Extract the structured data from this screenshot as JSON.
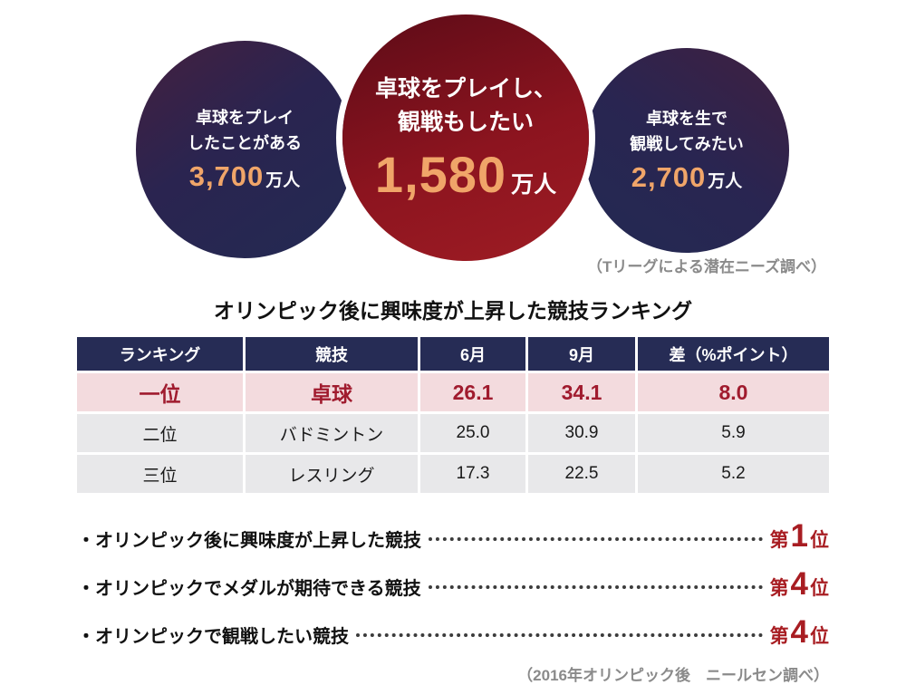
{
  "circles": [
    {
      "line1": "卓球をプレイ",
      "line2": "したことがある",
      "number": "3,700",
      "unit": "万人"
    },
    {
      "line1": "卓球をプレイし、",
      "line2": "観戦もしたい",
      "number": "1,580",
      "unit": "万人"
    },
    {
      "line1": "卓球を生で",
      "line2": "観戦してみたい",
      "number": "2,700",
      "unit": "万人"
    }
  ],
  "circles_caption": "（Tリーグによる潜在ニーズ調べ）",
  "table": {
    "title": "オリンピック後に興味度が上昇した競技ランキング",
    "headers": [
      "ランキング",
      "競技",
      "6月",
      "9月",
      "差（%ポイント）"
    ],
    "rows": [
      [
        "一位",
        "卓球",
        "26.1",
        "34.1",
        "8.0"
      ],
      [
        "二位",
        "バドミントン",
        "25.0",
        "30.9",
        "5.9"
      ],
      [
        "三位",
        "レスリング",
        "17.3",
        "22.5",
        "5.2"
      ]
    ]
  },
  "bullets": [
    {
      "label": "・オリンピック後に興味度が上昇した競技",
      "prefix": "第",
      "number": "1",
      "suffix": "位"
    },
    {
      "label": "・オリンピックでメダルが期待できる競技",
      "prefix": "第",
      "number": "4",
      "suffix": "位"
    },
    {
      "label": "・オリンピックで観戦したい競技",
      "prefix": "第",
      "number": "4",
      "suffix": "位"
    }
  ],
  "bottom_caption": "（2016年オリンピック後　ニールセン調べ）",
  "colors": {
    "navy": "#232a52",
    "dark_red": "#8c141f",
    "accent_orange": "#f0a569",
    "highlight_row_bg": "#f3dbde",
    "highlight_text": "#a01b2e",
    "gray_row_bg": "#e8e8ea",
    "header_bg": "#262c55",
    "caption_gray": "#8a8a8a"
  },
  "chart_data": {
    "type": "table",
    "title": "オリンピック後に興味度が上昇した競技ランキング",
    "columns": [
      "ランキング",
      "競技",
      "6月",
      "9月",
      "差（%ポイント）"
    ],
    "rows": [
      [
        "一位",
        "卓球",
        26.1,
        34.1,
        8.0
      ],
      [
        "二位",
        "バドミントン",
        25.0,
        30.9,
        5.9
      ],
      [
        "三位",
        "レスリング",
        17.3,
        22.5,
        5.2
      ]
    ],
    "stats_10k_people": [
      {
        "label": "卓球をプレイしたことがある",
        "value": 3700
      },
      {
        "label": "卓球をプレイし、観戦もしたい",
        "value": 1580
      },
      {
        "label": "卓球を生で観戦してみたい",
        "value": 2700
      }
    ],
    "rankings": [
      {
        "label": "オリンピック後に興味度が上昇した競技",
        "rank": 1
      },
      {
        "label": "オリンピックでメダルが期待できる競技",
        "rank": 4
      },
      {
        "label": "オリンピックで観戦したい競技",
        "rank": 4
      }
    ],
    "sources": [
      "Tリーグによる潜在ニーズ調べ",
      "2016年オリンピック後　ニールセン調べ"
    ]
  }
}
